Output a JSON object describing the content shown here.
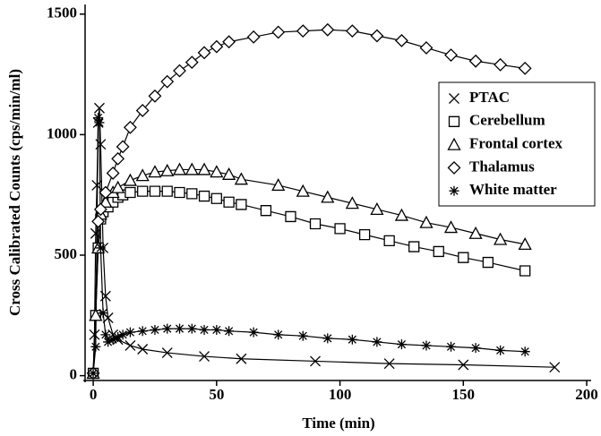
{
  "chart_data": {
    "type": "line",
    "xlabel": "Time (min)",
    "ylabel": "Cross Calibrated Counts (cps/min/ml)",
    "xlim": [
      -3.3,
      201.8
    ],
    "ylim": [
      -20,
      1540
    ],
    "xticks": [
      0,
      50,
      100,
      150,
      200
    ],
    "yticks": [
      0,
      500,
      1000,
      1500
    ],
    "legend": "upper right",
    "grid": false,
    "series": [
      {
        "name": "PTAC",
        "color": "#000000",
        "marker": "x",
        "x": [
          0,
          0.5,
          1,
          1.5,
          2,
          2.5,
          3,
          4,
          5,
          6,
          8,
          10,
          15,
          20,
          30,
          45,
          60,
          90,
          120,
          150,
          187
        ],
        "values": [
          10,
          170,
          590,
          790,
          1050,
          1110,
          960,
          530,
          330,
          240,
          170,
          150,
          125,
          110,
          95,
          80,
          70,
          60,
          50,
          45,
          35
        ]
      },
      {
        "name": "Cerebellum",
        "color": "#000000",
        "marker": "square",
        "x": [
          0,
          1,
          2,
          3,
          4,
          6,
          8,
          10,
          12,
          15,
          20,
          25,
          30,
          35,
          40,
          45,
          50,
          55,
          60,
          70,
          80,
          90,
          100,
          110,
          120,
          130,
          140,
          150,
          160,
          175
        ],
        "values": [
          10,
          250,
          530,
          650,
          680,
          700,
          720,
          740,
          750,
          760,
          765,
          765,
          765,
          760,
          755,
          745,
          735,
          720,
          710,
          685,
          660,
          630,
          610,
          585,
          560,
          535,
          515,
          490,
          470,
          435
        ]
      },
      {
        "name": "Frontal cortex",
        "color": "#000000",
        "marker": "triangle",
        "x": [
          0,
          1,
          2,
          3,
          5,
          8,
          10,
          15,
          20,
          25,
          30,
          35,
          40,
          45,
          50,
          55,
          60,
          75,
          85,
          95,
          105,
          115,
          125,
          135,
          145,
          155,
          165,
          175
        ],
        "values": [
          10,
          250,
          530,
          670,
          720,
          760,
          780,
          810,
          830,
          845,
          850,
          855,
          855,
          855,
          845,
          835,
          815,
          790,
          765,
          740,
          715,
          690,
          665,
          635,
          615,
          590,
          565,
          545
        ]
      },
      {
        "name": "Thalamus",
        "color": "#000000",
        "marker": "diamond",
        "x": [
          0,
          2,
          3,
          5,
          8,
          10,
          12,
          15,
          20,
          25,
          30,
          35,
          40,
          45,
          50,
          55,
          65,
          75,
          85,
          95,
          105,
          115,
          125,
          135,
          145,
          155,
          165,
          175
        ],
        "values": [
          10,
          640,
          690,
          760,
          840,
          900,
          950,
          1030,
          1100,
          1160,
          1220,
          1265,
          1300,
          1340,
          1365,
          1385,
          1405,
          1425,
          1430,
          1435,
          1430,
          1410,
          1390,
          1360,
          1330,
          1305,
          1290,
          1275
        ]
      },
      {
        "name": "White matter",
        "color": "#000000",
        "marker": "asterisk",
        "x": [
          0,
          1,
          2,
          2.5,
          3,
          4,
          5,
          6,
          8,
          10,
          12,
          15,
          20,
          25,
          30,
          35,
          40,
          45,
          50,
          55,
          65,
          75,
          85,
          95,
          105,
          115,
          125,
          135,
          145,
          155,
          165,
          175
        ],
        "values": [
          10,
          120,
          1070,
          1050,
          530,
          260,
          170,
          140,
          150,
          160,
          170,
          180,
          185,
          190,
          195,
          195,
          195,
          190,
          190,
          185,
          180,
          170,
          165,
          155,
          150,
          140,
          130,
          125,
          120,
          115,
          105,
          100
        ]
      }
    ]
  }
}
